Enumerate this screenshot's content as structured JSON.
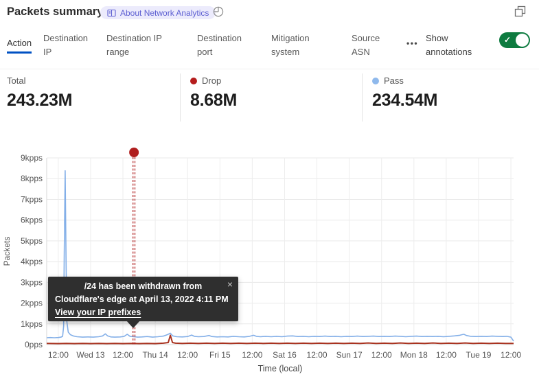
{
  "header": {
    "title": "Packets summary",
    "about_badge": "About Network Analytics"
  },
  "icons": {
    "badge_icon": "book-icon",
    "time_icon": "pie-chart-icon",
    "popout_icon": "overlap-squares-icon",
    "toggle_check": "✓",
    "more": "•••"
  },
  "tabs": [
    {
      "label": "Action",
      "active": true
    },
    {
      "label": "Destination IP",
      "active": false
    },
    {
      "label": "Destination IP range",
      "active": false
    },
    {
      "label": "Destination port",
      "active": false
    },
    {
      "label": "Mitigation system",
      "active": false
    },
    {
      "label": "Source ASN",
      "active": false
    }
  ],
  "annotations_toggle": {
    "label": "Show annotations",
    "enabled": true
  },
  "stats": [
    {
      "label": "Total",
      "value": "243.23M",
      "dot_color": ""
    },
    {
      "label": "Drop",
      "value": "8.68M",
      "dot_color": "#b51d1d"
    },
    {
      "label": "Pass",
      "value": "234.54M",
      "dot_color": "#8fb9ec"
    }
  ],
  "tooltip": {
    "line1": "/24 has been withdrawn from",
    "line2": "Cloudflare's edge at April 13, 2022 4:11 PM",
    "link": "View your IP prefixes",
    "close": "×"
  },
  "chart_data": {
    "type": "line",
    "title": "Packets summary over time",
    "xlabel": "Time (local)",
    "ylabel": "Packets",
    "grid": true,
    "ylim": [
      0,
      9
    ],
    "y_ticks": [
      "0pps",
      "1kpps",
      "2kpps",
      "3kpps",
      "4kpps",
      "5kpps",
      "6kpps",
      "7kpps",
      "8kpps",
      "9kpps"
    ],
    "x_ticks": [
      "12:00",
      "Wed 13",
      "12:00",
      "Thu 14",
      "12:00",
      "Fri 15",
      "12:00",
      "Sat 16",
      "12:00",
      "Sun 17",
      "12:00",
      "Mon 18",
      "12:00",
      "Tue 19",
      "12:00"
    ],
    "x_tick_hours": [
      0,
      12,
      24,
      36,
      48,
      60,
      72,
      84,
      96,
      108,
      120,
      132,
      144,
      156,
      168
    ],
    "x_range_hours": [
      -4.3,
      169
    ],
    "unit": "kpps",
    "series": [
      {
        "name": "Pass",
        "color": "#83afe8",
        "width": 1.6,
        "points": [
          [
            -4.3,
            0.33
          ],
          [
            -3,
            0.34
          ],
          [
            -1.5,
            0.33
          ],
          [
            0,
            0.34
          ],
          [
            1,
            0.36
          ],
          [
            1.6,
            0.4
          ],
          [
            2.0,
            0.9
          ],
          [
            2.2,
            4.2
          ],
          [
            2.55,
            8.38
          ],
          [
            2.9,
            3.8
          ],
          [
            3.2,
            1.1
          ],
          [
            3.7,
            0.6
          ],
          [
            4.5,
            0.48
          ],
          [
            5.5,
            0.42
          ],
          [
            7,
            0.38
          ],
          [
            9,
            0.36
          ],
          [
            11,
            0.37
          ],
          [
            13,
            0.36
          ],
          [
            15,
            0.38
          ],
          [
            16.5,
            0.42
          ],
          [
            17.5,
            0.52
          ],
          [
            18.3,
            0.42
          ],
          [
            19.5,
            0.37
          ],
          [
            21,
            0.36
          ],
          [
            23,
            0.37
          ],
          [
            24.5,
            0.4
          ],
          [
            25.6,
            0.5
          ],
          [
            26.6,
            0.4
          ],
          [
            28,
            0.38
          ],
          [
            29.5,
            0.36
          ],
          [
            31,
            0.37
          ],
          [
            33,
            0.39
          ],
          [
            35,
            0.36
          ],
          [
            37,
            0.38
          ],
          [
            39,
            0.41
          ],
          [
            40.5,
            0.48
          ],
          [
            41.6,
            0.55
          ],
          [
            42.5,
            0.42
          ],
          [
            44,
            0.38
          ],
          [
            46,
            0.37
          ],
          [
            48,
            0.39
          ],
          [
            49.5,
            0.46
          ],
          [
            50.5,
            0.4
          ],
          [
            52,
            0.38
          ],
          [
            54,
            0.39
          ],
          [
            56,
            0.44
          ],
          [
            57,
            0.39
          ],
          [
            59,
            0.37
          ],
          [
            61,
            0.38
          ],
          [
            63,
            0.37
          ],
          [
            65,
            0.4
          ],
          [
            67,
            0.38
          ],
          [
            69,
            0.37
          ],
          [
            71,
            0.4
          ],
          [
            72.5,
            0.45
          ],
          [
            73.5,
            0.4
          ],
          [
            75,
            0.38
          ],
          [
            77,
            0.4
          ],
          [
            79,
            0.38
          ],
          [
            81,
            0.4
          ],
          [
            83,
            0.38
          ],
          [
            85,
            0.41
          ],
          [
            87,
            0.42
          ],
          [
            89,
            0.39
          ],
          [
            91,
            0.4
          ],
          [
            93,
            0.38
          ],
          [
            95,
            0.4
          ],
          [
            97,
            0.39
          ],
          [
            99,
            0.41
          ],
          [
            101,
            0.39
          ],
          [
            103,
            0.4
          ],
          [
            105,
            0.38
          ],
          [
            107,
            0.4
          ],
          [
            109,
            0.39
          ],
          [
            111,
            0.41
          ],
          [
            113,
            0.39
          ],
          [
            115,
            0.4
          ],
          [
            117,
            0.41
          ],
          [
            119,
            0.39
          ],
          [
            121,
            0.4
          ],
          [
            123,
            0.39
          ],
          [
            125,
            0.41
          ],
          [
            127,
            0.4
          ],
          [
            129,
            0.38
          ],
          [
            131,
            0.4
          ],
          [
            133,
            0.41
          ],
          [
            135,
            0.39
          ],
          [
            137,
            0.4
          ],
          [
            139,
            0.39
          ],
          [
            141,
            0.4
          ],
          [
            143,
            0.38
          ],
          [
            145,
            0.4
          ],
          [
            147,
            0.42
          ],
          [
            149,
            0.45
          ],
          [
            150.5,
            0.5
          ],
          [
            151.5,
            0.44
          ],
          [
            153,
            0.4
          ],
          [
            155,
            0.39
          ],
          [
            157,
            0.4
          ],
          [
            159,
            0.39
          ],
          [
            161,
            0.41
          ],
          [
            163,
            0.4
          ],
          [
            165,
            0.39
          ],
          [
            166.5,
            0.4
          ],
          [
            168,
            0.36
          ],
          [
            169,
            0.17
          ]
        ]
      },
      {
        "name": "Drop",
        "color": "#a8321f",
        "width": 2,
        "points": [
          [
            -4.3,
            0.06
          ],
          [
            0,
            0.05
          ],
          [
            3,
            0.06
          ],
          [
            6,
            0.05
          ],
          [
            9,
            0.06
          ],
          [
            12,
            0.05
          ],
          [
            15,
            0.06
          ],
          [
            18,
            0.05
          ],
          [
            21,
            0.06
          ],
          [
            24,
            0.05
          ],
          [
            27,
            0.06
          ],
          [
            30,
            0.05
          ],
          [
            33,
            0.06
          ],
          [
            36,
            0.05
          ],
          [
            39,
            0.07
          ],
          [
            40.8,
            0.1
          ],
          [
            41.6,
            0.45
          ],
          [
            42.4,
            0.1
          ],
          [
            43.5,
            0.07
          ],
          [
            46,
            0.06
          ],
          [
            49,
            0.07
          ],
          [
            52,
            0.06
          ],
          [
            55,
            0.07
          ],
          [
            58,
            0.06
          ],
          [
            61,
            0.07
          ],
          [
            64,
            0.06
          ],
          [
            67,
            0.07
          ],
          [
            70,
            0.06
          ],
          [
            73,
            0.07
          ],
          [
            76,
            0.06
          ],
          [
            79,
            0.07
          ],
          [
            82,
            0.06
          ],
          [
            85,
            0.07
          ],
          [
            88,
            0.06
          ],
          [
            91,
            0.07
          ],
          [
            94,
            0.06
          ],
          [
            97,
            0.07
          ],
          [
            100,
            0.06
          ],
          [
            103,
            0.07
          ],
          [
            106,
            0.06
          ],
          [
            109,
            0.07
          ],
          [
            112,
            0.06
          ],
          [
            115,
            0.08
          ],
          [
            118,
            0.06
          ],
          [
            121,
            0.07
          ],
          [
            124,
            0.06
          ],
          [
            127,
            0.08
          ],
          [
            130,
            0.06
          ],
          [
            133,
            0.07
          ],
          [
            136,
            0.06
          ],
          [
            139,
            0.08
          ],
          [
            142,
            0.06
          ],
          [
            145,
            0.07
          ],
          [
            148,
            0.06
          ],
          [
            151,
            0.08
          ],
          [
            154,
            0.06
          ],
          [
            157,
            0.07
          ],
          [
            160,
            0.06
          ],
          [
            163,
            0.07
          ],
          [
            166,
            0.06
          ],
          [
            169,
            0.06
          ]
        ]
      }
    ],
    "annotation": {
      "t_hours": 28.1,
      "color": "#b01e1e",
      "text": "/24 has been withdrawn from Cloudflare's edge at April 13, 2022 4:11 PM"
    },
    "legend_position": "top",
    "colors": {
      "accent_blue": "#0051c3",
      "toggle_green": "#0e7b40",
      "badge_bg": "#ecebfc",
      "badge_text": "#5e60d2"
    }
  }
}
